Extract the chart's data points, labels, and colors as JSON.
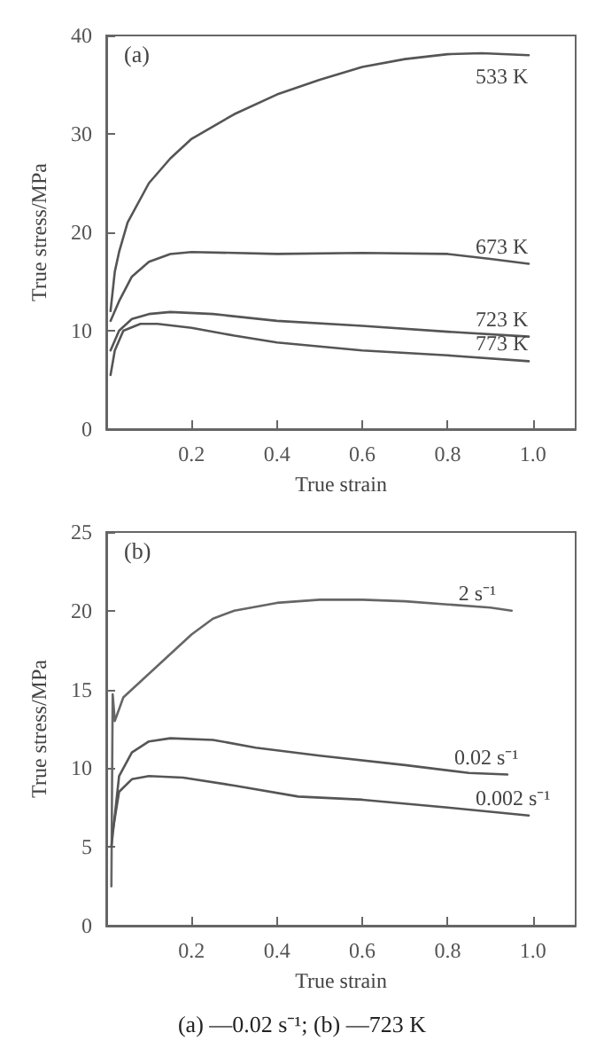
{
  "chart_data": [
    {
      "type": "line",
      "xlabel": "True strain",
      "ylabel": "True stress/MPa",
      "annotations": [
        "(a)"
      ],
      "xlim": [
        0,
        1.1
      ],
      "xticks": [
        0.2,
        0.4,
        0.6,
        0.8,
        {
          "value": 1,
          "label": "1.0"
        }
      ],
      "ylim": [
        0,
        40
      ],
      "yticks": [
        0,
        10,
        20,
        30,
        40
      ],
      "grid": false,
      "marker": "none",
      "line_style": "solid",
      "series": [
        {
          "name": "533 K",
          "color": "#555555",
          "x": [
            0.01,
            0.02,
            0.03,
            0.05,
            0.1,
            0.15,
            0.2,
            0.3,
            0.4,
            0.5,
            0.6,
            0.7,
            0.8,
            0.88,
            0.99
          ],
          "values": [
            12,
            16,
            18,
            21,
            25,
            27.5,
            29.5,
            32,
            34,
            35.5,
            36.8,
            37.6,
            38.1,
            38.2,
            38
          ]
        },
        {
          "name": "673 K",
          "color": "#555555",
          "x": [
            0.01,
            0.03,
            0.06,
            0.1,
            0.15,
            0.2,
            0.4,
            0.6,
            0.8,
            0.9,
            0.99
          ],
          "values": [
            11,
            13,
            15.5,
            17,
            17.8,
            18,
            17.8,
            17.9,
            17.8,
            17.3,
            16.8
          ]
        },
        {
          "name": "723 K",
          "color": "#555555",
          "x": [
            0.01,
            0.03,
            0.06,
            0.1,
            0.15,
            0.25,
            0.4,
            0.6,
            0.8,
            0.99
          ],
          "values": [
            8,
            10,
            11.2,
            11.7,
            11.9,
            11.7,
            11,
            10.5,
            9.9,
            9.4
          ]
        },
        {
          "name": "773 K",
          "color": "#555555",
          "x": [
            0.01,
            0.02,
            0.04,
            0.08,
            0.12,
            0.2,
            0.3,
            0.4,
            0.6,
            0.8,
            0.99
          ],
          "values": [
            5.5,
            8,
            10,
            10.7,
            10.7,
            10.3,
            9.5,
            8.8,
            8,
            7.5,
            6.9
          ]
        }
      ]
    },
    {
      "type": "line",
      "xlabel": "True strain",
      "ylabel": "True stress/MPa",
      "annotations": [
        "(b)",
        "(a) —0.02 s⁻¹; (b) —723 K"
      ],
      "xlim": [
        0,
        1.1
      ],
      "xticks": [
        0.2,
        0.4,
        0.6,
        0.8,
        {
          "value": 1,
          "label": "1.0"
        }
      ],
      "ylim": [
        0,
        25
      ],
      "yticks": [
        0,
        5,
        10,
        15,
        20,
        25
      ],
      "grid": false,
      "marker": "none",
      "line_style": "solid",
      "series": [
        {
          "name": "2 s⁻¹",
          "color": "#666666",
          "x": [
            0.012,
            0.015,
            0.02,
            0.04,
            0.08,
            0.12,
            0.16,
            0.2,
            0.25,
            0.3,
            0.4,
            0.5,
            0.6,
            0.7,
            0.8,
            0.9,
            0.95
          ],
          "values": [
            2.5,
            14.7,
            13,
            14.5,
            15.5,
            16.5,
            17.5,
            18.5,
            19.5,
            20,
            20.5,
            20.7,
            20.7,
            20.6,
            20.4,
            20.2,
            20
          ]
        },
        {
          "name": "0.02 s⁻¹",
          "color": "#555555",
          "x": [
            0.012,
            0.03,
            0.06,
            0.1,
            0.15,
            0.25,
            0.35,
            0.5,
            0.7,
            0.85,
            0.94
          ],
          "values": [
            5,
            9.5,
            11,
            11.7,
            11.9,
            11.8,
            11.3,
            10.8,
            10.2,
            9.7,
            9.6
          ]
        },
        {
          "name": "0.002 s⁻¹",
          "color": "#555555",
          "x": [
            0.015,
            0.03,
            0.06,
            0.1,
            0.18,
            0.3,
            0.45,
            0.6,
            0.8,
            0.99
          ],
          "values": [
            6,
            8.5,
            9.3,
            9.5,
            9.4,
            8.9,
            8.2,
            8,
            7.5,
            7
          ]
        }
      ]
    }
  ]
}
